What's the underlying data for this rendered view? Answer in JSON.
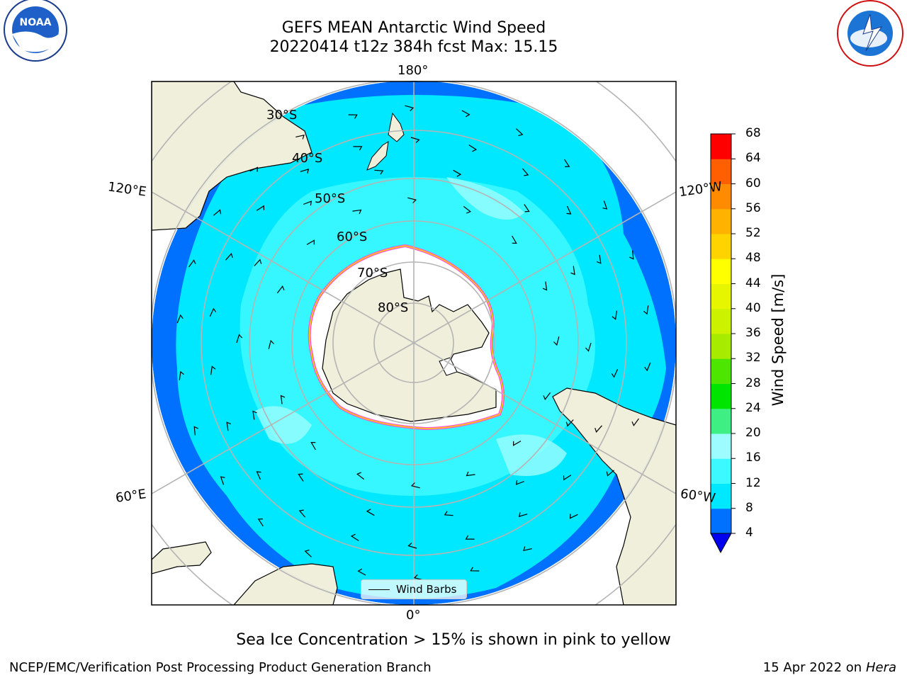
{
  "title_line1": "GEFS MEAN Antarctic Wind Speed",
  "title_line2": "20220414 t12z 384h fcst   Max: 15.15",
  "lon_labels": {
    "top": "180°",
    "bottom": "0°",
    "upper_left": "120°E",
    "upper_right": "120°W",
    "lower_left": "60°E",
    "lower_right": "60°W"
  },
  "lat_labels": [
    "30°S",
    "40°S",
    "50°S",
    "60°S",
    "70°S",
    "80°S"
  ],
  "legend_label": "Wind Barbs",
  "colorbar": {
    "label": "Wind Speed [m/s]",
    "ticks": [
      4,
      8,
      12,
      16,
      20,
      24,
      28,
      32,
      36,
      40,
      44,
      48,
      52,
      56,
      60,
      64,
      68
    ],
    "colors": [
      "#0070ff",
      "#00e8ff",
      "#3cf8ff",
      "#9cfcff",
      "#3ef083",
      "#00e500",
      "#4ce600",
      "#a6eb00",
      "#ccf200",
      "#e6f500",
      "#ffff00",
      "#ffd300",
      "#ffb300",
      "#ff8c00",
      "#ff5f00",
      "#ff2600"
    ],
    "under_color": "#0000f0",
    "top_color": "#ff0000"
  },
  "subtitle": "Sea Ice Concentration > 15% is shown in pink to yellow",
  "footer_left": "NCEP/EMC/Verification Post Processing Product Generation Branch",
  "footer_date": "15 Apr 2022 on",
  "footer_host": "Hera"
}
